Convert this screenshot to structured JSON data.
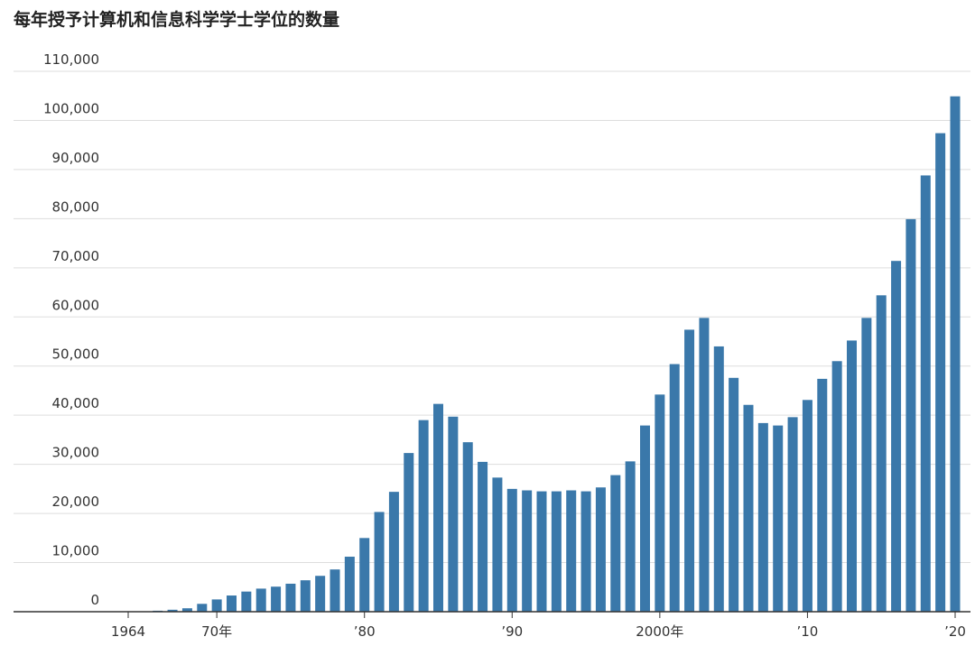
{
  "chart_data": {
    "type": "bar",
    "title": "每年授予计算机和信息科学学士学位的数量",
    "categories": [
      "1964",
      null,
      null,
      null,
      null,
      null,
      "70年",
      null,
      null,
      null,
      null,
      null,
      null,
      null,
      null,
      null,
      "’80",
      null,
      null,
      null,
      null,
      null,
      null,
      null,
      null,
      null,
      "’90",
      null,
      null,
      null,
      null,
      null,
      null,
      null,
      null,
      null,
      "2000年",
      null,
      null,
      null,
      null,
      null,
      null,
      null,
      null,
      null,
      "’10",
      null,
      null,
      null,
      null,
      null,
      null,
      null,
      null,
      null,
      "’20"
    ],
    "values": [
      0,
      0,
      200,
      400,
      700,
      1600,
      2500,
      3300,
      4100,
      4700,
      5100,
      5700,
      6400,
      7300,
      8600,
      11200,
      15000,
      20300,
      24400,
      32300,
      39000,
      42300,
      39700,
      34500,
      30500,
      27300,
      25000,
      24700,
      24500,
      24500,
      24700,
      24500,
      25300,
      27800,
      30600,
      37900,
      44200,
      50400,
      57400,
      59800,
      54000,
      47600,
      42100,
      38400,
      37900,
      39600,
      43100,
      47400,
      51000,
      55200,
      59800,
      64400,
      71400,
      79900,
      88800,
      97400,
      104900
    ],
    "color": "#3a78aa",
    "ylim": [
      0,
      110000
    ],
    "yticks": [
      0,
      {
        "value": 10000,
        "label": "10,000"
      },
      {
        "value": 20000,
        "label": "20,000"
      },
      {
        "value": 30000,
        "label": "30,000"
      },
      {
        "value": 40000,
        "label": "40,000"
      },
      {
        "value": 50000,
        "label": "50,000"
      },
      {
        "value": 60000,
        "label": "60,000"
      },
      {
        "value": 70000,
        "label": "70,000"
      },
      {
        "value": 80000,
        "label": "80,000"
      },
      {
        "value": 90000,
        "label": "90,000"
      },
      {
        "value": 100000,
        "label": "100,000"
      },
      {
        "value": 110000,
        "label": "110,000"
      }
    ],
    "grid": true
  }
}
